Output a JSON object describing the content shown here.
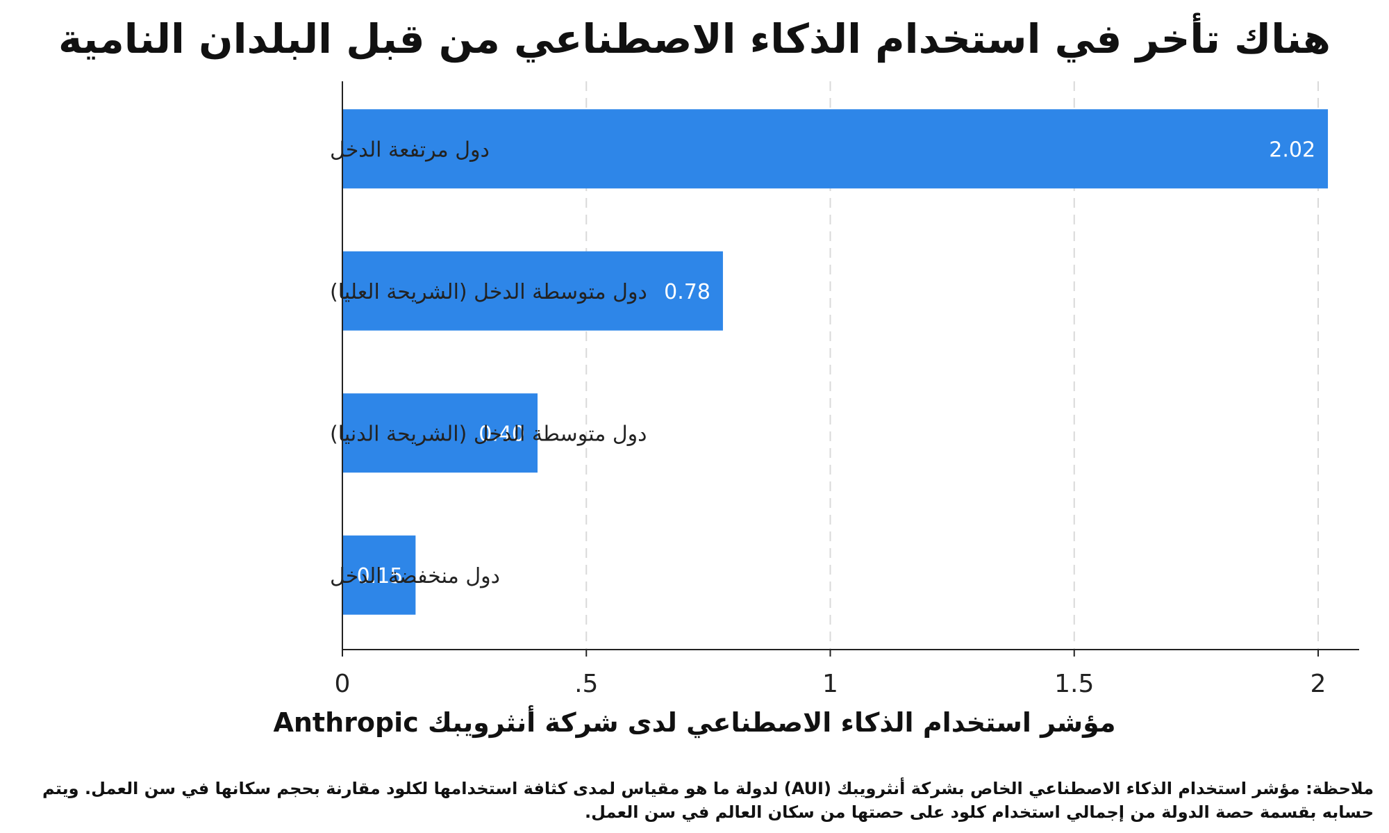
{
  "chart_data": {
    "type": "bar",
    "orientation": "horizontal",
    "title": "هناك تأخر في استخدام الذكاء الاصطناعي من قبل البلدان النامية",
    "categories": [
      "دول مرتفعة الدخل",
      "دول متوسطة الدخل (الشريحة العليا)",
      "دول متوسطة الدخل (الشريحة الدنيا)",
      "دول منخفضة الدخل"
    ],
    "values": [
      2.02,
      0.78,
      0.4,
      0.15
    ],
    "value_labels": [
      "2.02",
      "0.78",
      "0.40",
      "0.15"
    ],
    "xticks": [
      0,
      0.5,
      1,
      1.5,
      2
    ],
    "xtick_labels": [
      "0",
      ".5",
      "1",
      "1.5",
      "2"
    ],
    "xlim": [
      0,
      2.08
    ],
    "xlabel": "مؤشر استخدام الذكاء الاصطناعي لدى شركة أنثرويبك Anthropic",
    "ylabel": "",
    "grid": "vertical dashed",
    "bar_color": "#2e86e8",
    "note": "ملاحظة: مؤشر استخدام الذكاء الاصطناعي الخاص بشركة أنثرويبك (AUI) لدولة ما هو مقياس لمدى كثافة استخدامها لكلود مقارنة بحجم سكانها في سن العمل. ويتم حسابه بقسمة حصة الدولة من إجمالي استخدام كلود على حصتها من سكان العالم في سن العمل."
  }
}
